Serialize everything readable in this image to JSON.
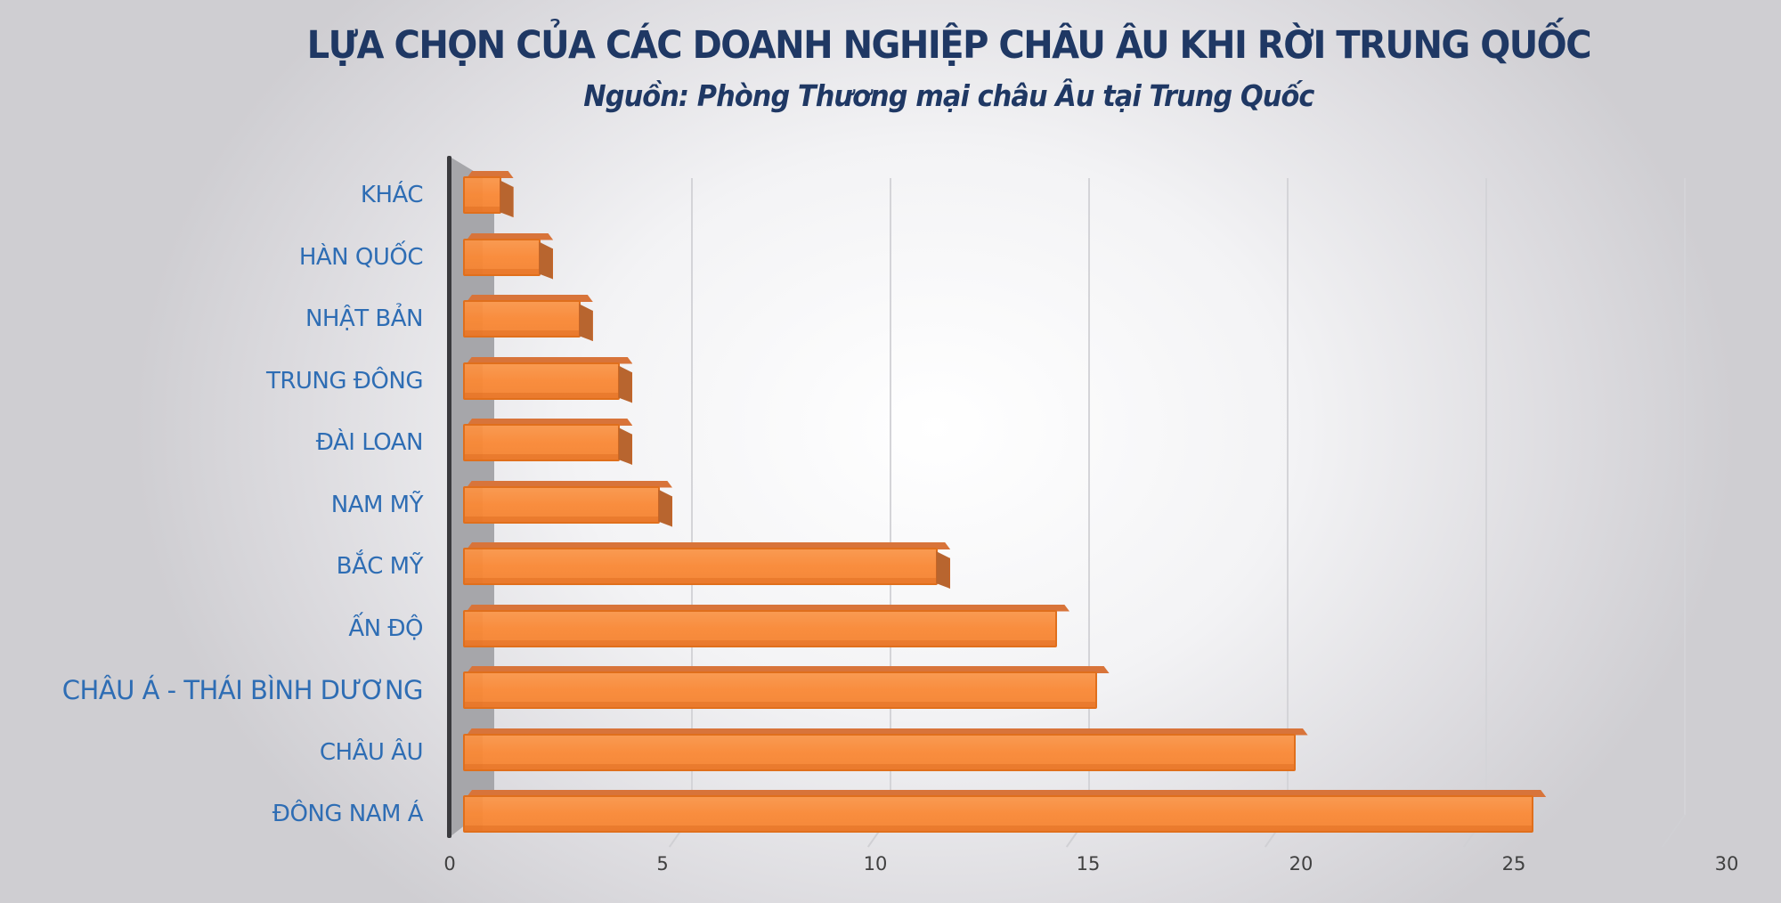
{
  "header": {
    "title": "LỰA CHỌN CỦA CÁC DOANH NGHIỆP CHÂU ÂU KHI RỜI TRUNG QUỐC",
    "subtitle": "Nguồn: Phòng Thương mại châu Âu tại Trung Quốc"
  },
  "axis": {
    "ticks": [
      "0",
      "5",
      "10",
      "15",
      "20",
      "25",
      "30"
    ]
  },
  "categories": [
    {
      "label": "KHÁC",
      "value": 1
    },
    {
      "label": "HÀN QUỐC",
      "value": 2
    },
    {
      "label": "NHẬT BẢN",
      "value": 3
    },
    {
      "label": "TRUNG ĐÔNG",
      "value": 4
    },
    {
      "label": "ĐÀI LOAN",
      "value": 4
    },
    {
      "label": "NAM MỸ",
      "value": 5
    },
    {
      "label": "BẮC MỸ",
      "value": 12
    },
    {
      "label": "ẤN ĐỘ",
      "value": 15
    },
    {
      "label": "CHÂU Á - THÁI BÌNH DƯƠNG",
      "value": 16
    },
    {
      "label": "CHÂU ÂU",
      "value": 21
    },
    {
      "label": "ĐÔNG NAM Á",
      "value": 27
    }
  ],
  "colors": {
    "bar": "#f98d3e",
    "bar_edge": "#e06f1c",
    "title": "#1f3864",
    "category_label": "#2e6db4"
  },
  "chart_data": {
    "type": "bar",
    "orientation": "horizontal",
    "style": "3d",
    "title": "LỰA CHỌN CỦA CÁC DOANH NGHIỆP CHÂU ÂU KHI RỜI TRUNG QUỐC",
    "subtitle": "Nguồn: Phòng Thương mại châu Âu tại Trung Quốc",
    "categories": [
      "KHÁC",
      "HÀN QUỐC",
      "NHẬT BẢN",
      "TRUNG ĐÔNG",
      "ĐÀI LOAN",
      "NAM MỸ",
      "BẮC MỸ",
      "ẤN ĐỘ",
      "CHÂU Á - THÁI BÌNH DƯƠNG",
      "CHÂU ÂU",
      "ĐÔNG NAM Á"
    ],
    "values": [
      1,
      2,
      3,
      4,
      4,
      5,
      12,
      15,
      16,
      21,
      27
    ],
    "xlabel": "",
    "ylabel": "",
    "xlim": [
      0,
      30
    ],
    "xticks": [
      0,
      5,
      10,
      15,
      20,
      25,
      30
    ],
    "grid": true,
    "legend": null
  }
}
